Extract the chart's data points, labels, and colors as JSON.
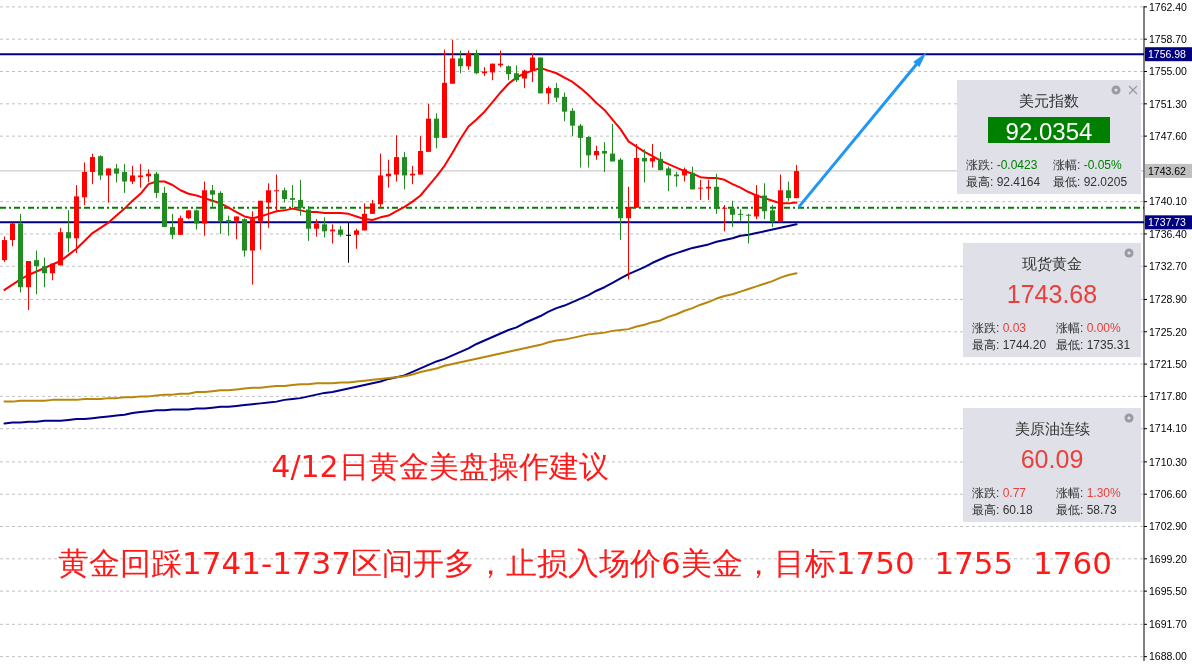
{
  "chart_data": [
    {
      "type": "candlestick",
      "categories": [
        null,
        null,
        null,
        null,
        null,
        null,
        null,
        null,
        null,
        null,
        null,
        null,
        null,
        null,
        null,
        null,
        null,
        null,
        null,
        null,
        null,
        null,
        null,
        null,
        null,
        null,
        null,
        null,
        null,
        null,
        null,
        null,
        null,
        null,
        null,
        null,
        null,
        null,
        null,
        null,
        null,
        null,
        null,
        null,
        null,
        null,
        null,
        null,
        null,
        null,
        null,
        null,
        null,
        null,
        null,
        null,
        null,
        null,
        null,
        null,
        null,
        null,
        null,
        null,
        null,
        null,
        null,
        null,
        null,
        null,
        null,
        null,
        null,
        null,
        null,
        null,
        null,
        null,
        null,
        null,
        null,
        null,
        null,
        null,
        null,
        null,
        null,
        null,
        null,
        null,
        null,
        null,
        null,
        null,
        null,
        null,
        null,
        null,
        null,
        null
      ],
      "ohlc": [
        [
          1733.4,
          1736.1,
          1733.2,
          1735.7
        ],
        [
          1735.7,
          1737.7,
          1735.0,
          1737.6
        ],
        [
          1737.6,
          1738.7,
          1729.7,
          1730.3
        ],
        [
          1730.3,
          1733.3,
          1727.7,
          1733.3
        ],
        [
          1733.4,
          1734.5,
          1729.5,
          1732.7
        ],
        [
          1732.7,
          1733.7,
          1730.3,
          1731.9
        ],
        [
          1731.9,
          1733.0,
          1731.1,
          1733.0
        ],
        [
          1732.8,
          1737.1,
          1732.8,
          1736.6
        ],
        [
          1736.6,
          1739.1,
          1734.3,
          1735.9
        ],
        [
          1735.9,
          1742.0,
          1734.2,
          1740.7
        ],
        [
          1740.6,
          1744.6,
          1739.7,
          1743.5
        ],
        [
          1743.5,
          1745.6,
          1742.1,
          1745.2
        ],
        [
          1745.3,
          1745.4,
          1742.6,
          1743.1
        ],
        [
          1743.1,
          1743.9,
          1740.0,
          1743.9
        ],
        [
          1743.9,
          1744.4,
          1742.3,
          1743.3
        ],
        [
          1743.5,
          1744.4,
          1741.1,
          1742.4
        ],
        [
          1742.4,
          1744.2,
          1742.1,
          1743.1
        ],
        [
          1742.9,
          1744.4,
          1741.7,
          1743.1
        ],
        [
          1743.0,
          1743.8,
          1742.3,
          1743.3
        ],
        [
          1743.3,
          1743.5,
          1740.5,
          1741.1
        ],
        [
          1741.1,
          1741.8,
          1737.2,
          1737.2
        ],
        [
          1737.2,
          1738.7,
          1735.8,
          1736.3
        ],
        [
          1736.3,
          1738.5,
          1736.3,
          1738.2
        ],
        [
          1738.2,
          1739.1,
          1738.1,
          1739.1
        ],
        [
          1739.1,
          1739.2,
          1736.9,
          1737.6
        ],
        [
          1737.6,
          1742.4,
          1736.2,
          1741.4
        ],
        [
          1741.4,
          1742.0,
          1739.4,
          1740.9
        ],
        [
          1741.1,
          1741.3,
          1736.4,
          1737.9
        ],
        [
          1738.0,
          1738.5,
          1736.2,
          1737.8
        ],
        [
          1737.9,
          1738.4,
          1735.8,
          1738.4
        ],
        [
          1738.1,
          1738.2,
          1733.8,
          1734.5
        ],
        [
          1734.5,
          1739.0,
          1730.6,
          1738.1
        ],
        [
          1737.9,
          1740.2,
          1734.6,
          1740.2
        ],
        [
          1740.0,
          1742.2,
          1737.1,
          1741.4
        ],
        [
          1741.3,
          1743.2,
          1739.0,
          1741.4
        ],
        [
          1741.4,
          1741.7,
          1740.0,
          1740.4
        ],
        [
          1740.5,
          1742.0,
          1739.4,
          1740.3
        ],
        [
          1740.3,
          1742.6,
          1738.5,
          1739.4
        ],
        [
          1739.2,
          1739.6,
          1735.6,
          1737.0
        ],
        [
          1737.0,
          1738.1,
          1736.1,
          1737.6
        ],
        [
          1737.5,
          1738.3,
          1736.0,
          1736.7
        ],
        [
          1736.7,
          1737.5,
          1735.3,
          1736.9
        ],
        [
          1736.9,
          1737.3,
          1736.1,
          1736.3
        ],
        [
          1736.3,
          1737.7,
          1733.1,
          1736.3
        ],
        [
          1736.3,
          1737.0,
          1734.7,
          1736.8
        ],
        [
          1736.8,
          1739.9,
          1736.8,
          1738.7
        ],
        [
          1738.7,
          1740.3,
          1738.7,
          1739.9
        ],
        [
          1739.8,
          1745.6,
          1739.5,
          1743.1
        ],
        [
          1743.0,
          1744.9,
          1741.7,
          1743.3
        ],
        [
          1743.2,
          1747.7,
          1742.4,
          1745.2
        ],
        [
          1745.2,
          1745.8,
          1741.5,
          1743.1
        ],
        [
          1743.1,
          1744.2,
          1742.1,
          1743.3
        ],
        [
          1743.2,
          1747.6,
          1743.2,
          1745.9
        ],
        [
          1745.8,
          1751.3,
          1745.8,
          1749.6
        ],
        [
          1749.6,
          1750.2,
          1746.2,
          1747.4
        ],
        [
          1747.4,
          1757.5,
          1747.4,
          1753.7
        ],
        [
          1753.6,
          1758.6,
          1753.6,
          1756.5
        ],
        [
          1756.5,
          1757.4,
          1754.8,
          1755.6
        ],
        [
          1755.6,
          1757.4,
          1755.2,
          1757.0
        ],
        [
          1757.0,
          1757.5,
          1754.7,
          1754.8
        ],
        [
          1754.8,
          1755.5,
          1754.5,
          1755.0
        ],
        [
          1754.9,
          1755.9,
          1754.0,
          1755.9
        ],
        [
          1755.7,
          1757.4,
          1755.5,
          1755.9
        ],
        [
          1755.6,
          1755.7,
          1754.0,
          1754.7
        ],
        [
          1754.8,
          1755.7,
          1753.8,
          1754.0
        ],
        [
          1754.2,
          1755.2,
          1753.1,
          1755.1
        ],
        [
          1755.1,
          1757.1,
          1753.8,
          1756.6
        ],
        [
          1756.6,
          1756.6,
          1752.5,
          1752.5
        ],
        [
          1752.5,
          1753.3,
          1751.3,
          1753.1
        ],
        [
          1753.1,
          1753.7,
          1751.5,
          1752.0
        ],
        [
          1752.1,
          1752.6,
          1749.3,
          1750.4
        ],
        [
          1750.5,
          1750.8,
          1747.6,
          1748.8
        ],
        [
          1748.8,
          1749.0,
          1744.0,
          1747.4
        ],
        [
          1747.5,
          1747.6,
          1744.0,
          1745.4
        ],
        [
          1745.4,
          1746.5,
          1744.9,
          1745.9
        ],
        [
          1745.9,
          1746.9,
          1743.5,
          1745.6
        ],
        [
          1745.6,
          1749.0,
          1744.7,
          1744.7
        ],
        [
          1744.9,
          1745.1,
          1735.7,
          1738.2
        ],
        [
          1738.2,
          1741.8,
          1731.2,
          1739.5
        ],
        [
          1739.4,
          1746.7,
          1739.4,
          1745.1
        ],
        [
          1745.1,
          1746.1,
          1742.3,
          1744.7
        ],
        [
          1744.7,
          1746.7,
          1744.0,
          1745.1
        ],
        [
          1745.0,
          1745.8,
          1743.7,
          1743.7
        ],
        [
          1743.9,
          1744.1,
          1741.3,
          1743.1
        ],
        [
          1743.2,
          1743.5,
          1741.8,
          1743.0
        ],
        [
          1743.1,
          1744.0,
          1742.4,
          1743.8
        ],
        [
          1743.4,
          1744.1,
          1741.5,
          1741.5
        ],
        [
          1741.6,
          1742.6,
          1740.3,
          1741.7
        ],
        [
          1741.6,
          1742.6,
          1740.3,
          1741.8
        ],
        [
          1741.8,
          1743.3,
          1738.7,
          1739.3
        ],
        [
          1739.3,
          1739.7,
          1736.7,
          1739.4
        ],
        [
          1739.3,
          1740.2,
          1737.2,
          1738.6
        ],
        [
          1738.7,
          1739.2,
          1737.9,
          1738.6
        ],
        [
          1738.6,
          1738.7,
          1735.3,
          1738.5
        ],
        [
          1738.4,
          1742.0,
          1738.1,
          1740.9
        ],
        [
          1740.8,
          1742.2,
          1738.1,
          1739.0
        ],
        [
          1739.1,
          1739.7,
          1737.2,
          1737.8
        ],
        [
          1737.8,
          1743.2,
          1737.8,
          1741.4
        ],
        [
          1741.4,
          1742.4,
          1740.2,
          1740.5
        ],
        [
          1740.5,
          1744.3,
          1740.5,
          1743.6
        ]
      ],
      "colors": [
        "#ff0000",
        "#ff0000",
        "#228b22",
        "#ff0000",
        "#228b22",
        "#228b22",
        "#ff0000",
        "#ff0000",
        "#228b22",
        "#ff0000",
        "#ff0000",
        "#ff0000",
        "#228b22",
        "#ff0000",
        "#228b22",
        "#228b22",
        "#ff0000",
        "#ff0000",
        "#ff0000",
        "#228b22",
        "#228b22",
        "#228b22",
        "#ff0000",
        "#ff0000",
        "#228b22",
        "#ff0000",
        "#228b22",
        "#228b22",
        "#228b22",
        "#ff0000",
        "#228b22",
        "#ff0000",
        "#ff0000",
        "#ff0000",
        "#ff0000",
        "#228b22",
        "#228b22",
        "#228b22",
        "#228b22",
        "#ff0000",
        "#228b22",
        "#ff0000",
        "#228b22",
        "#000000",
        "#ff0000",
        "#ff0000",
        "#ff0000",
        "#ff0000",
        "#ff0000",
        "#ff0000",
        "#228b22",
        "#ff0000",
        "#ff0000",
        "#ff0000",
        "#228b22",
        "#ff0000",
        "#ff0000",
        "#228b22",
        "#ff0000",
        "#228b22",
        "#ff0000",
        "#ff0000",
        "#ff0000",
        "#228b22",
        "#228b22",
        "#ff0000",
        "#ff0000",
        "#228b22",
        "#ff0000",
        "#228b22",
        "#228b22",
        "#228b22",
        "#228b22",
        "#228b22",
        "#ff0000",
        "#228b22",
        "#228b22",
        "#228b22",
        "#ff0000",
        "#ff0000",
        "#228b22",
        "#ff0000",
        "#228b22",
        "#228b22",
        "#228b22",
        "#ff0000",
        "#228b22",
        "#ff0000",
        "#ff0000",
        "#228b22",
        "#ff0000",
        "#228b22",
        "#228b22",
        "#228b22",
        "#ff0000",
        "#228b22",
        "#228b22",
        "#ff0000",
        "#228b22",
        "#ff0000"
      ],
      "series": [
        {
          "type": "line",
          "color": "#ff0000",
          "values": [
            1730.0,
            1730.6,
            1731.2,
            1731.7,
            1732.1,
            1732.5,
            1732.9,
            1733.3,
            1734.0,
            1734.7,
            1735.6,
            1736.5,
            1737.1,
            1737.7,
            1738.5,
            1739.3,
            1740.2,
            1741.0,
            1742.1,
            1742.4,
            1742.4,
            1742.0,
            1741.4,
            1741.0,
            1740.8,
            1740.5,
            1740.2,
            1739.9,
            1739.4,
            1738.9,
            1738.4,
            1738.2,
            1738.4,
            1738.7,
            1739.0,
            1739.1,
            1739.3,
            1739.1,
            1738.9,
            1738.9,
            1738.8,
            1738.8,
            1738.8,
            1738.7,
            1738.4,
            1738.1,
            1738.0,
            1738.3,
            1738.5,
            1739.0,
            1739.5,
            1740.1,
            1740.8,
            1741.9,
            1743.0,
            1744.2,
            1745.7,
            1747.3,
            1748.7,
            1749.5,
            1750.4,
            1751.5,
            1752.6,
            1753.6,
            1754.3,
            1754.8,
            1755.1,
            1755.4,
            1755.1,
            1754.8,
            1754.3,
            1753.8,
            1753.1,
            1752.3,
            1751.4,
            1750.6,
            1749.5,
            1748.4,
            1747.0,
            1746.4,
            1745.8,
            1745.3,
            1744.8,
            1744.4,
            1744.0,
            1743.6,
            1743.3,
            1742.9,
            1742.8,
            1742.8,
            1742.6,
            1742.1,
            1741.7,
            1741.2,
            1740.8,
            1740.5,
            1740.2,
            1739.9,
            1739.9,
            1740.0
          ]
        },
        {
          "type": "line",
          "color": "#00008b",
          "values": [
            1714.7,
            1714.8,
            1714.8,
            1714.9,
            1714.9,
            1715.0,
            1715.0,
            1715.0,
            1715.1,
            1715.2,
            1715.2,
            1715.3,
            1715.4,
            1715.5,
            1715.6,
            1715.7,
            1715.9,
            1716.0,
            1716.1,
            1716.2,
            1716.2,
            1716.3,
            1716.3,
            1716.3,
            1716.4,
            1716.4,
            1716.5,
            1716.6,
            1716.6,
            1716.7,
            1716.8,
            1716.9,
            1717.0,
            1717.1,
            1717.2,
            1717.4,
            1717.5,
            1717.6,
            1717.8,
            1718.0,
            1718.2,
            1718.3,
            1718.5,
            1718.7,
            1718.9,
            1719.1,
            1719.3,
            1719.5,
            1719.8,
            1720.0,
            1720.2,
            1720.6,
            1721.0,
            1721.4,
            1721.8,
            1722.1,
            1722.5,
            1722.9,
            1723.3,
            1723.8,
            1724.2,
            1724.6,
            1725.0,
            1725.4,
            1725.7,
            1726.2,
            1726.6,
            1727.0,
            1727.5,
            1727.9,
            1728.2,
            1728.6,
            1729.0,
            1729.4,
            1729.9,
            1730.3,
            1730.8,
            1731.3,
            1731.8,
            1732.2,
            1732.6,
            1733.1,
            1733.5,
            1733.9,
            1734.2,
            1734.5,
            1734.8,
            1735.0,
            1735.2,
            1735.5,
            1735.7,
            1735.9,
            1736.2,
            1736.3,
            1736.5,
            1736.7,
            1736.9,
            1737.1,
            1737.3,
            1737.5
          ]
        },
        {
          "type": "line",
          "color": "#b8860b",
          "values": [
            1717.2,
            1717.2,
            1717.3,
            1717.3,
            1717.3,
            1717.3,
            1717.4,
            1717.4,
            1717.4,
            1717.4,
            1717.5,
            1717.5,
            1717.5,
            1717.6,
            1717.6,
            1717.7,
            1717.7,
            1717.8,
            1717.8,
            1717.9,
            1718.0,
            1718.0,
            1718.1,
            1718.1,
            1718.3,
            1718.3,
            1718.4,
            1718.5,
            1718.5,
            1718.6,
            1718.7,
            1718.8,
            1718.8,
            1718.9,
            1719.0,
            1719.0,
            1719.1,
            1719.2,
            1719.2,
            1719.3,
            1719.3,
            1719.3,
            1719.4,
            1719.4,
            1719.5,
            1719.6,
            1719.7,
            1719.8,
            1719.9,
            1720.0,
            1720.1,
            1720.3,
            1720.6,
            1720.8,
            1721.0,
            1721.3,
            1721.5,
            1721.7,
            1721.9,
            1722.1,
            1722.3,
            1722.5,
            1722.7,
            1722.9,
            1723.1,
            1723.3,
            1723.5,
            1723.7,
            1724.0,
            1724.2,
            1724.3,
            1724.5,
            1724.7,
            1724.9,
            1725.0,
            1725.1,
            1725.3,
            1725.4,
            1725.5,
            1725.8,
            1726.0,
            1726.3,
            1726.5,
            1726.9,
            1727.2,
            1727.6,
            1727.9,
            1728.3,
            1728.6,
            1729.0,
            1729.3,
            1729.5,
            1729.8,
            1730.1,
            1730.4,
            1730.7,
            1731.0,
            1731.4,
            1731.7,
            1731.9
          ]
        }
      ],
      "ylim": [
        1687.5,
        1762.5
      ],
      "yticks": [
        {
          "value": 1762.4,
          "label": "1762.40"
        },
        {
          "value": 1758.7,
          "label": "1758.70"
        },
        {
          "value": 1755.0,
          "label": "1755.00"
        },
        {
          "value": 1751.3,
          "label": "1751.30"
        },
        {
          "value": 1747.6,
          "label": "1747.60"
        },
        {
          "value": 1740.1,
          "label": "1740.10"
        },
        {
          "value": 1736.4,
          "label": "1736.40"
        },
        {
          "value": 1732.7,
          "label": "1732.70"
        },
        {
          "value": 1728.9,
          "label": "1728.90"
        },
        {
          "value": 1725.2,
          "label": "1725.20"
        },
        {
          "value": 1721.5,
          "label": "1721.50"
        },
        {
          "value": 1717.8,
          "label": "1717.80"
        },
        {
          "value": 1714.1,
          "label": "1714.10"
        },
        {
          "value": 1710.3,
          "label": "1710.30"
        },
        {
          "value": 1706.6,
          "label": "1706.60"
        },
        {
          "value": 1702.9,
          "label": "1702.90"
        },
        {
          "value": 1699.2,
          "label": "1699.20"
        },
        {
          "value": 1695.5,
          "label": "1695.50"
        },
        {
          "value": 1691.7,
          "label": "1691.70"
        },
        {
          "value": 1688.0,
          "label": "1688.00"
        }
      ],
      "tick_labels": "y",
      "grid": "y",
      "ref_lines": [
        {
          "axis": "y",
          "value": 1756.98,
          "label": "1756.98",
          "color": "#000080"
        },
        {
          "axis": "y",
          "value": 1737.73,
          "label": "1737.73",
          "color": "#000080"
        },
        {
          "axis": "y",
          "value": 1743.62,
          "label": "1743.62",
          "color": "#c0c0c0"
        },
        {
          "axis": "y",
          "value": 1739.4,
          "color": "#008000",
          "line_style": "dashed"
        }
      ],
      "annotations": [
        "4/12日黄金美盘操作建议",
        "黄金回踩1741-1737区间开多，止损入场价6美金，目标1750  1755  1760"
      ]
    },
    {
      "type": "other",
      "title": "美元指数",
      "subtitle": "92.0354",
      "color": "#008000",
      "colors": [
        "#008000"
      ],
      "annotations": [
        "涨跌: -0.0423",
        "涨幅: -0.05%",
        "最高: 92.4164",
        "最低: 92.0205"
      ]
    },
    {
      "type": "other",
      "title": "现货黄金",
      "subtitle": "1743.68",
      "color": "#e8403a",
      "annotations": [
        "涨跌: 0.03",
        "涨幅: 0.00%",
        "最高: 1744.20",
        "最低: 1735.31"
      ]
    },
    {
      "type": "other",
      "title": "美原油连续",
      "subtitle": "60.09",
      "color": "#e8403a",
      "annotations": [
        "涨跌: 0.77",
        "涨幅: 1.30%",
        "最高: 60.18",
        "最低: 58.73"
      ]
    }
  ]
}
